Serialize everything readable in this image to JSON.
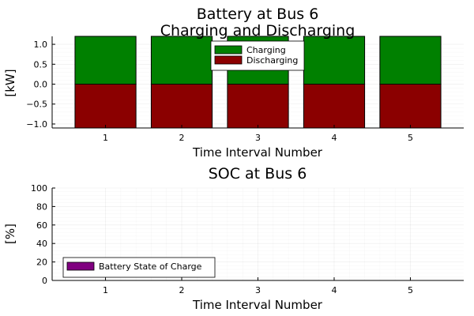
{
  "chart_data": [
    {
      "type": "bar",
      "title": [
        "Battery at Bus 6",
        "Charging and Discharging"
      ],
      "xlabel": "Time Interval Number",
      "ylabel": "[kW]",
      "categories": [
        1,
        2,
        3,
        4,
        5
      ],
      "x_ticks": [
        "1",
        "2",
        "3",
        "4",
        "5"
      ],
      "y_ticks": [
        "1.0",
        "0.5",
        "0.0",
        "−0.5",
        "−1.0"
      ],
      "y_tick_values": [
        1.0,
        0.5,
        0.0,
        -0.5,
        -1.0
      ],
      "xlim": [
        0.3,
        5.7
      ],
      "ylim": [
        -1.1,
        1.2
      ],
      "grid": true,
      "legend_position": "top-right",
      "series": [
        {
          "name": "Charging",
          "values": [
            1.2,
            1.2,
            1.2,
            1.2,
            1.2
          ],
          "color": "#008000"
        },
        {
          "name": "Discharging",
          "values": [
            -1.1,
            -1.1,
            -1.1,
            -1.1,
            -1.1
          ],
          "color": "#8b0000"
        }
      ]
    },
    {
      "type": "bar",
      "title": [
        "SOC at Bus 6"
      ],
      "xlabel": "Time Interval Number",
      "ylabel": "[%]",
      "categories": [
        1,
        2,
        3,
        4,
        5
      ],
      "x_ticks": [
        "1",
        "2",
        "3",
        "4",
        "5"
      ],
      "y_ticks": [
        "100",
        "80",
        "60",
        "40",
        "20",
        "0"
      ],
      "y_tick_values": [
        100,
        80,
        60,
        40,
        20,
        0
      ],
      "xlim": [
        0.3,
        5.7
      ],
      "ylim": [
        0,
        100
      ],
      "grid": true,
      "legend_position": "bottom-left",
      "series": [
        {
          "name": "Battery State of Charge",
          "values": [
            0,
            0,
            0,
            0,
            0
          ],
          "color": "#800080"
        }
      ]
    }
  ]
}
